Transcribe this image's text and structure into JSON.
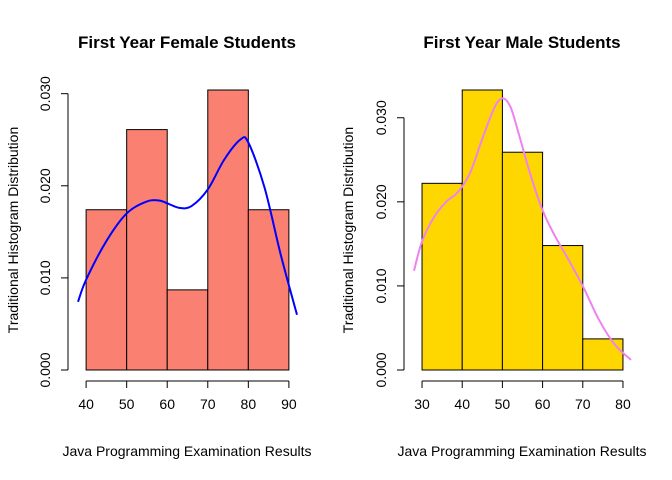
{
  "chart_data": [
    {
      "type": "bar",
      "subtype": "histogram",
      "title": "First Year Female Students",
      "xlabel": "Java Programming Examination Results",
      "ylabel": "Traditional Histogram Distribution",
      "bins": [
        {
          "from": 40,
          "to": 50,
          "density": 0.0174
        },
        {
          "from": 50,
          "to": 60,
          "density": 0.0261
        },
        {
          "from": 60,
          "to": 70,
          "density": 0.0087
        },
        {
          "from": 70,
          "to": 80,
          "density": 0.0304
        },
        {
          "from": 80,
          "to": 90,
          "density": 0.0174
        }
      ],
      "density_curve": {
        "color": "#0000ff",
        "x": [
          38,
          40,
          45,
          50,
          55,
          58,
          60,
          63,
          66,
          70,
          74,
          78,
          80,
          84,
          88,
          92
        ],
        "y": [
          0.0074,
          0.0098,
          0.014,
          0.017,
          0.0183,
          0.0184,
          0.0181,
          0.0176,
          0.0178,
          0.0196,
          0.0228,
          0.025,
          0.0247,
          0.0198,
          0.0125,
          0.006
        ]
      },
      "bar_color": "#fa8072",
      "xticks": [
        40,
        50,
        60,
        70,
        80,
        90
      ],
      "yticks": [
        "0.000",
        "0.010",
        "0.020",
        "0.030"
      ],
      "ytick_values": [
        0,
        0.01,
        0.02,
        0.03
      ],
      "xlim": [
        38,
        92
      ],
      "ylim": [
        0,
        0.0304
      ],
      "grid": false
    },
    {
      "type": "bar",
      "subtype": "histogram",
      "title": "First Year Male Students",
      "xlabel": "Java Programming Examination Results",
      "ylabel": "Traditional Histogram Distribution",
      "bins": [
        {
          "from": 30,
          "to": 40,
          "density": 0.0222
        },
        {
          "from": 40,
          "to": 50,
          "density": 0.0333
        },
        {
          "from": 50,
          "to": 60,
          "density": 0.0259
        },
        {
          "from": 60,
          "to": 70,
          "density": 0.0148
        },
        {
          "from": 70,
          "to": 80,
          "density": 0.0037
        }
      ],
      "density_curve": {
        "color": "#ee82ee",
        "x": [
          28,
          30,
          33,
          36,
          39,
          42,
          45,
          48,
          50,
          52,
          54,
          57,
          60,
          63,
          66,
          70,
          74,
          78,
          82
        ],
        "y": [
          0.0118,
          0.0153,
          0.0182,
          0.02,
          0.0212,
          0.0235,
          0.0275,
          0.0312,
          0.0323,
          0.0313,
          0.0282,
          0.0232,
          0.019,
          0.016,
          0.0135,
          0.01,
          0.006,
          0.003,
          0.0012
        ]
      },
      "bar_color": "#ffd700",
      "xticks": [
        30,
        40,
        50,
        60,
        70,
        80
      ],
      "yticks": [
        "0.000",
        "0.010",
        "0.020",
        "0.030"
      ],
      "ytick_values": [
        0,
        0.01,
        0.02,
        0.03
      ],
      "xlim": [
        28,
        82
      ],
      "ylim": [
        0,
        0.0333
      ],
      "grid": false
    }
  ]
}
